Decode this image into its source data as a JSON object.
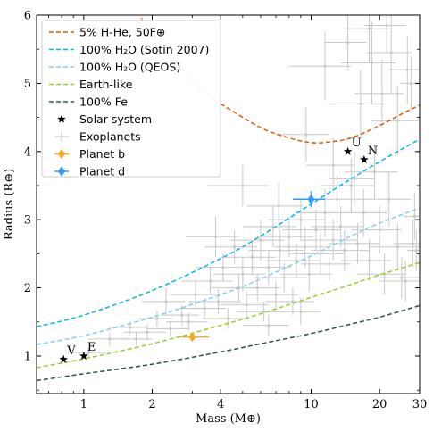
{
  "chart_data": {
    "type": "scatter",
    "xlabel": "Mass (M⊕)",
    "ylabel": "Radius (R⊕)",
    "x_scale": "log",
    "xlim": [
      0.62,
      30
    ],
    "ylim": [
      0.45,
      6
    ],
    "x_ticks": [
      1,
      2,
      4,
      10,
      20,
      30
    ],
    "x_tick_labels": [
      "1",
      "2",
      "4",
      "10",
      "20",
      "30"
    ],
    "y_ticks": [
      1,
      2,
      3,
      4,
      5,
      6
    ],
    "y_tick_labels": [
      "1",
      "2",
      "3",
      "4",
      "5",
      "6"
    ],
    "grid": false,
    "legend_position": "top-left",
    "curves": [
      {
        "name": "5% H-He, 50F⊕",
        "color": "#d95f0e",
        "dash": "dashed",
        "x": [
          1.5,
          2.0,
          3.0,
          4.0,
          6.0,
          8.0,
          10.0,
          12.0,
          15.0,
          20.0,
          25.0,
          30.0
        ],
        "y": [
          6.3,
          5.75,
          5.05,
          4.7,
          4.35,
          4.2,
          4.13,
          4.14,
          4.2,
          4.38,
          4.55,
          4.68
        ],
        "faded_below_x": 2.4,
        "faded_segment": {
          "x_from": 2.4,
          "x_to": 4.6
        }
      },
      {
        "name": "100% H₂O (Sotin 2007)",
        "color": "#00b8e6",
        "dash": "dashed",
        "x": [
          0.62,
          1.0,
          2.0,
          4.0,
          6.0,
          10.0,
          15.0,
          20.0,
          30.0
        ],
        "y": [
          1.43,
          1.6,
          1.96,
          2.43,
          2.76,
          3.23,
          3.6,
          3.85,
          4.18
        ]
      },
      {
        "name": "100% H₂O (QEOS)",
        "color": "#87ceeb",
        "dash": "dashed",
        "x": [
          0.62,
          1.0,
          2.0,
          4.0,
          6.0,
          10.0,
          15.0,
          20.0,
          30.0
        ],
        "y": [
          1.17,
          1.3,
          1.57,
          1.9,
          2.13,
          2.47,
          2.76,
          2.95,
          3.17
        ]
      },
      {
        "name": "Earth-like",
        "color": "#9acd32",
        "dash": "dashed",
        "x": [
          0.62,
          1.0,
          2.0,
          4.0,
          6.0,
          10.0,
          15.0,
          20.0,
          30.0
        ],
        "y": [
          0.83,
          0.96,
          1.18,
          1.45,
          1.62,
          1.86,
          2.05,
          2.19,
          2.37
        ]
      },
      {
        "name": "100% Fe",
        "color": "#2f4f4f",
        "dash": "dashed",
        "x": [
          0.62,
          1.0,
          2.0,
          4.0,
          6.0,
          10.0,
          15.0,
          20.0,
          30.0
        ],
        "y": [
          0.64,
          0.74,
          0.88,
          1.06,
          1.18,
          1.33,
          1.47,
          1.57,
          1.74
        ]
      }
    ],
    "solar_system": {
      "name": "Solar system",
      "marker": "star",
      "color": "#000000",
      "points": [
        {
          "label": "V",
          "x": 0.815,
          "y": 0.95
        },
        {
          "label": "E",
          "x": 1.0,
          "y": 1.0
        },
        {
          "label": "U",
          "x": 14.5,
          "y": 4.0
        },
        {
          "label": "N",
          "x": 17.1,
          "y": 3.88
        }
      ]
    },
    "exoplanets": {
      "name": "Exoplanets",
      "color": "#c8c8c8",
      "points": [
        {
          "x": 1.05,
          "y": 1.05,
          "xe": 0.2,
          "ye": 0.08
        },
        {
          "x": 1.3,
          "y": 1.25,
          "xe": 0.25,
          "ye": 0.1
        },
        {
          "x": 1.6,
          "y": 1.42,
          "xe": 0.3,
          "ye": 0.1
        },
        {
          "x": 1.9,
          "y": 1.35,
          "xe": 0.4,
          "ye": 0.12
        },
        {
          "x": 2.1,
          "y": 1.55,
          "xe": 0.35,
          "ye": 0.12
        },
        {
          "x": 2.4,
          "y": 1.4,
          "xe": 0.5,
          "ye": 0.1
        },
        {
          "x": 2.7,
          "y": 1.6,
          "xe": 0.5,
          "ye": 0.15
        },
        {
          "x": 2.9,
          "y": 1.5,
          "xe": 0.6,
          "ye": 0.13
        },
        {
          "x": 3.1,
          "y": 1.9,
          "xe": 0.7,
          "ye": 0.2
        },
        {
          "x": 3.4,
          "y": 1.7,
          "xe": 0.8,
          "ye": 0.15
        },
        {
          "x": 3.6,
          "y": 2.1,
          "xe": 0.9,
          "ye": 0.2
        },
        {
          "x": 3.9,
          "y": 1.8,
          "xe": 1.0,
          "ye": 0.18
        },
        {
          "x": 4.1,
          "y": 2.3,
          "xe": 1.0,
          "ye": 0.2
        },
        {
          "x": 4.3,
          "y": 1.55,
          "xe": 1.0,
          "ye": 0.15
        },
        {
          "x": 4.6,
          "y": 2.6,
          "xe": 1.2,
          "ye": 0.25
        },
        {
          "x": 4.8,
          "y": 2.0,
          "xe": 1.2,
          "ye": 0.2
        },
        {
          "x": 5.0,
          "y": 2.2,
          "xe": 1.3,
          "ye": 0.25
        },
        {
          "x": 5.2,
          "y": 1.75,
          "xe": 1.3,
          "ye": 0.2
        },
        {
          "x": 5.5,
          "y": 2.45,
          "xe": 1.5,
          "ye": 0.25
        },
        {
          "x": 5.8,
          "y": 2.0,
          "xe": 1.5,
          "ye": 0.2
        },
        {
          "x": 6.0,
          "y": 2.7,
          "xe": 1.6,
          "ye": 0.3
        },
        {
          "x": 6.2,
          "y": 1.65,
          "xe": 1.5,
          "ye": 0.15
        },
        {
          "x": 6.5,
          "y": 2.3,
          "xe": 1.7,
          "ye": 0.25
        },
        {
          "x": 6.8,
          "y": 2.9,
          "xe": 1.8,
          "ye": 0.3
        },
        {
          "x": 7.0,
          "y": 1.9,
          "xe": 1.8,
          "ye": 0.2
        },
        {
          "x": 7.3,
          "y": 2.55,
          "xe": 2.0,
          "ye": 0.3
        },
        {
          "x": 7.6,
          "y": 2.15,
          "xe": 2.0,
          "ye": 0.22
        },
        {
          "x": 8.0,
          "y": 2.75,
          "xe": 2.2,
          "ye": 0.3
        },
        {
          "x": 8.3,
          "y": 1.8,
          "xe": 2.0,
          "ye": 0.2
        },
        {
          "x": 8.6,
          "y": 2.4,
          "xe": 2.3,
          "ye": 0.25
        },
        {
          "x": 9.0,
          "y": 3.0,
          "xe": 2.5,
          "ye": 0.3
        },
        {
          "x": 9.4,
          "y": 2.6,
          "xe": 2.5,
          "ye": 0.3
        },
        {
          "x": 9.8,
          "y": 2.2,
          "xe": 2.6,
          "ye": 0.25
        },
        {
          "x": 10.5,
          "y": 2.85,
          "xe": 3.0,
          "ye": 0.3
        },
        {
          "x": 11.0,
          "y": 2.5,
          "xe": 3.0,
          "ye": 0.3
        },
        {
          "x": 11.5,
          "y": 3.1,
          "xe": 3.0,
          "ye": 0.35
        },
        {
          "x": 12.0,
          "y": 2.35,
          "xe": 3.0,
          "ye": 0.25
        },
        {
          "x": 12.5,
          "y": 2.7,
          "xe": 3.5,
          "ye": 0.3
        },
        {
          "x": 13.0,
          "y": 3.3,
          "xe": 3.5,
          "ye": 0.35
        },
        {
          "x": 13.5,
          "y": 2.9,
          "xe": 3.5,
          "ye": 0.3
        },
        {
          "x": 14.0,
          "y": 2.55,
          "xe": 4.0,
          "ye": 0.3
        },
        {
          "x": 15.0,
          "y": 3.5,
          "xe": 4.0,
          "ye": 0.4
        },
        {
          "x": 16.0,
          "y": 2.65,
          "xe": 4.0,
          "ye": 0.3
        },
        {
          "x": 17.0,
          "y": 3.1,
          "xe": 4.5,
          "ye": 0.35
        },
        {
          "x": 18.0,
          "y": 2.4,
          "xe": 4.5,
          "ye": 0.3
        },
        {
          "x": 19.0,
          "y": 3.7,
          "xe": 5.0,
          "ye": 0.4
        },
        {
          "x": 20.0,
          "y": 2.85,
          "xe": 5.0,
          "ye": 0.35
        },
        {
          "x": 21.0,
          "y": 2.2,
          "xe": 5.0,
          "ye": 0.3
        },
        {
          "x": 22.0,
          "y": 3.3,
          "xe": 5.5,
          "ye": 0.4
        },
        {
          "x": 24.0,
          "y": 2.6,
          "xe": 6.0,
          "ye": 0.35
        },
        {
          "x": 26.0,
          "y": 2.1,
          "xe": 6.0,
          "ye": 0.3
        },
        {
          "x": 28.0,
          "y": 2.65,
          "xe": 5.0,
          "ye": 0.35
        },
        {
          "x": 25.0,
          "y": 2.15,
          "xe": 5.0,
          "ye": 0.3
        },
        {
          "x": 15.5,
          "y": 3.6,
          "xe": 3.5,
          "ye": 0.4
        },
        {
          "x": 16.5,
          "y": 4.7,
          "xe": 4.5,
          "ye": 0.5
        },
        {
          "x": 18.5,
          "y": 5.3,
          "xe": 5.0,
          "ye": 0.6
        },
        {
          "x": 20.5,
          "y": 4.85,
          "xe": 5.0,
          "ye": 0.5
        },
        {
          "x": 22.5,
          "y": 5.45,
          "xe": 5.0,
          "ye": 0.6
        },
        {
          "x": 24.0,
          "y": 4.45,
          "xe": 5.5,
          "ye": 0.5
        },
        {
          "x": 26.5,
          "y": 5.2,
          "xe": 4.5,
          "ye": 0.5
        },
        {
          "x": 18.0,
          "y": 5.8,
          "xe": 4.0,
          "ye": 0.5
        },
        {
          "x": 21.5,
          "y": 5.85,
          "xe": 4.5,
          "ye": 0.4
        },
        {
          "x": 27.5,
          "y": 5.0,
          "xe": 3.0,
          "ye": 0.4
        },
        {
          "x": 11.5,
          "y": 5.25,
          "xe": 3.5,
          "ye": 0.5
        },
        {
          "x": 14.5,
          "y": 5.6,
          "xe": 3.0,
          "ye": 0.4
        },
        {
          "x": 9.5,
          "y": 4.25,
          "xe": 2.5,
          "ye": 0.4
        },
        {
          "x": 5.0,
          "y": 3.5,
          "xe": 1.5,
          "ye": 0.3
        },
        {
          "x": 3.8,
          "y": 2.75,
          "xe": 1.0,
          "ye": 0.3
        },
        {
          "x": 1.7,
          "y": 1.25,
          "xe": 0.3,
          "ye": 0.1
        },
        {
          "x": 2.3,
          "y": 1.8,
          "xe": 0.5,
          "ye": 0.2
        },
        {
          "x": 6.5,
          "y": 1.45,
          "xe": 1.5,
          "ye": 0.15
        },
        {
          "x": 9.0,
          "y": 1.65,
          "xe": 2.0,
          "ye": 0.2
        },
        {
          "x": 7.2,
          "y": 3.2,
          "xe": 2.0,
          "ye": 0.35
        },
        {
          "x": 12.5,
          "y": 3.8,
          "xe": 3.0,
          "ye": 0.4
        },
        {
          "x": 28.5,
          "y": 3.05,
          "xe": 3.0,
          "ye": 0.35
        },
        {
          "x": 29.0,
          "y": 2.55,
          "xe": 2.5,
          "ye": 0.3
        }
      ]
    },
    "highlighted_planets": [
      {
        "name": "Planet b",
        "color": "#f5a623",
        "marker": "diamond",
        "x": 3.0,
        "y": 1.28,
        "xe_low": 0.35,
        "xe_high": 0.55,
        "ye": 0.05
      },
      {
        "name": "Planet d",
        "color": "#3399ff",
        "marker": "diamond",
        "x": 10.0,
        "y": 3.3,
        "xe_low": 1.7,
        "xe_high": 1.5,
        "ye": 0.12
      }
    ]
  }
}
